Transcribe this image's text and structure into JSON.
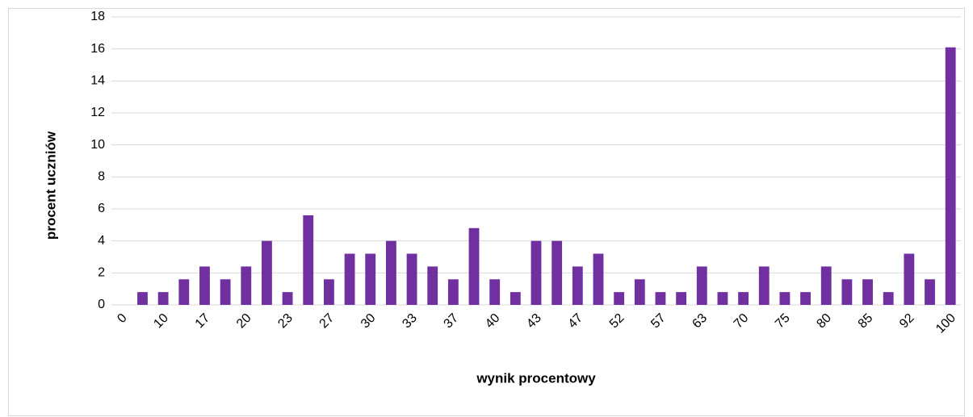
{
  "chart_data": {
    "type": "bar",
    "xlabel": "wynik procentowy",
    "ylabel": "procent uczniów",
    "categories": [
      "0",
      null,
      "10",
      null,
      "17",
      null,
      "20",
      null,
      "23",
      null,
      "27",
      null,
      "30",
      null,
      "33",
      null,
      "37",
      null,
      "40",
      null,
      "43",
      null,
      "47",
      null,
      "52",
      null,
      "57",
      null,
      "63",
      null,
      "70",
      null,
      "75",
      null,
      "80",
      null,
      "85",
      null,
      "92",
      null,
      "100"
    ],
    "values": [
      0,
      0.8,
      0.8,
      1.6,
      2.4,
      1.6,
      2.4,
      4,
      0.8,
      5.6,
      1.6,
      3.2,
      3.2,
      4,
      3.2,
      2.4,
      1.6,
      4.8,
      1.6,
      0.8,
      4,
      4,
      2.4,
      3.2,
      0.8,
      1.6,
      0.8,
      0.8,
      2.4,
      0.8,
      0.8,
      2.4,
      0.8,
      0.8,
      2.4,
      1.6,
      1.6,
      0.8,
      3.2,
      1.6,
      16.1
    ],
    "color": "#7030a0",
    "ylim": [
      0,
      18
    ],
    "yticks": [
      0,
      2,
      4,
      6,
      8,
      10,
      12,
      14,
      16,
      18
    ],
    "grid": true
  }
}
